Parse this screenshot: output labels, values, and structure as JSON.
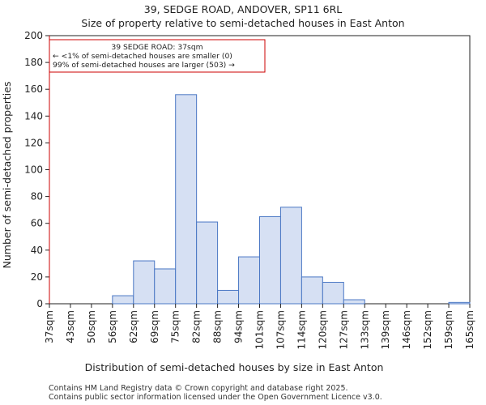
{
  "chart_data": {
    "type": "bar",
    "title": "39, SEDGE ROAD, ANDOVER, SP11 6RL",
    "subtitle": "Size of property relative to semi-detached houses in East Anton",
    "xlabel": "Distribution of semi-detached houses by size in East Anton",
    "ylabel": "Number of semi-detached properties",
    "ylim": [
      0,
      200
    ],
    "yticks": [
      0,
      20,
      40,
      60,
      80,
      100,
      120,
      140,
      160,
      180,
      200
    ],
    "x_tick_labels": [
      "37sqm",
      "43sqm",
      "50sqm",
      "56sqm",
      "62sqm",
      "69sqm",
      "75sqm",
      "82sqm",
      "88sqm",
      "94sqm",
      "101sqm",
      "107sqm",
      "114sqm",
      "120sqm",
      "127sqm",
      "133sqm",
      "139sqm",
      "146sqm",
      "152sqm",
      "159sqm",
      "165sqm"
    ],
    "values": [
      0,
      0,
      0,
      6,
      32,
      26,
      156,
      61,
      10,
      35,
      65,
      72,
      20,
      16,
      3,
      0,
      0,
      0,
      0,
      1
    ],
    "bar_fill": "#d6e0f3",
    "bar_stroke": "#4a77c4",
    "marker": {
      "x_bin_index": 0,
      "color": "#cc0000",
      "annotation_lines": [
        "39 SEDGE ROAD: 37sqm",
        "← <1% of semi-detached houses are smaller (0)",
        "99% of semi-detached houses are larger (503) →"
      ]
    }
  },
  "footer": {
    "line1": "Contains HM Land Registry data © Crown copyright and database right 2025.",
    "line2": "Contains public sector information licensed under the Open Government Licence v3.0."
  }
}
